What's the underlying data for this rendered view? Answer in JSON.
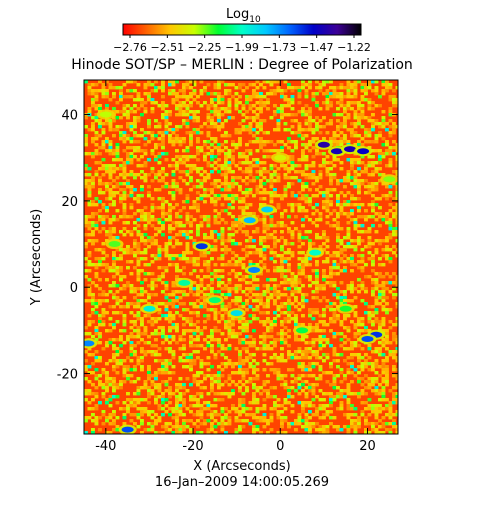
{
  "chart_data": {
    "type": "heatmap",
    "title": "Hinode SOT/SP – MERLIN : Degree of Polarization",
    "xlabel": "X (Arcseconds)",
    "ylabel": "Y (Arcseconds)",
    "footer": "16–Jan–2009 14:00:05.269",
    "xlim": [
      -45,
      27
    ],
    "ylim": [
      -34,
      48
    ],
    "xticks": [
      -40,
      -20,
      0,
      20
    ],
    "yticks": [
      -20,
      0,
      20,
      40
    ],
    "colorbar": {
      "title_main": "Log",
      "title_sub": "10",
      "range": [
        -2.9,
        -1.1
      ],
      "ticks": [
        "−2.76",
        "−2.51",
        "−2.25",
        "−1.99",
        "−1.73",
        "−1.47",
        "−1.22"
      ],
      "colormap": [
        "#ff0000",
        "#ff6400",
        "#ffc800",
        "#c8ff00",
        "#00ff32",
        "#00ffc8",
        "#00c8ff",
        "#0064ff",
        "#0000c8",
        "#3c0096",
        "#000000"
      ]
    },
    "grid": false,
    "background_value": -2.78,
    "features": [
      {
        "x": 10,
        "y": 33,
        "value": -1.35
      },
      {
        "x": 13,
        "y": 31.5,
        "value": -1.4
      },
      {
        "x": 16,
        "y": 32,
        "value": -1.38
      },
      {
        "x": 19,
        "y": 31.5,
        "value": -1.45
      },
      {
        "x": -18,
        "y": 9.5,
        "value": -1.55
      },
      {
        "x": -6,
        "y": 4,
        "value": -1.7
      },
      {
        "x": 22,
        "y": -11,
        "value": -1.55
      },
      {
        "x": 20,
        "y": -12,
        "value": -1.6
      },
      {
        "x": -44,
        "y": -13,
        "value": -1.7
      },
      {
        "x": -35,
        "y": -33,
        "value": -1.6
      },
      {
        "x": -7,
        "y": 15.5,
        "value": -1.8
      },
      {
        "x": -3,
        "y": 18,
        "value": -1.85
      },
      {
        "x": -10,
        "y": -6,
        "value": -1.9
      },
      {
        "x": -30,
        "y": -5,
        "value": -1.95
      },
      {
        "x": 8,
        "y": 8,
        "value": -2.0
      },
      {
        "x": -22,
        "y": 1,
        "value": -2.05
      },
      {
        "x": -15,
        "y": -3,
        "value": -2.1
      },
      {
        "x": 5,
        "y": -10,
        "value": -2.15
      },
      {
        "x": 15,
        "y": -5,
        "value": -2.2
      },
      {
        "x": -38,
        "y": 10,
        "value": -2.25
      },
      {
        "x": 25,
        "y": 25,
        "value": -2.3
      },
      {
        "x": -40,
        "y": 40,
        "value": -2.35
      },
      {
        "x": 0,
        "y": 30,
        "value": -2.4
      }
    ]
  }
}
